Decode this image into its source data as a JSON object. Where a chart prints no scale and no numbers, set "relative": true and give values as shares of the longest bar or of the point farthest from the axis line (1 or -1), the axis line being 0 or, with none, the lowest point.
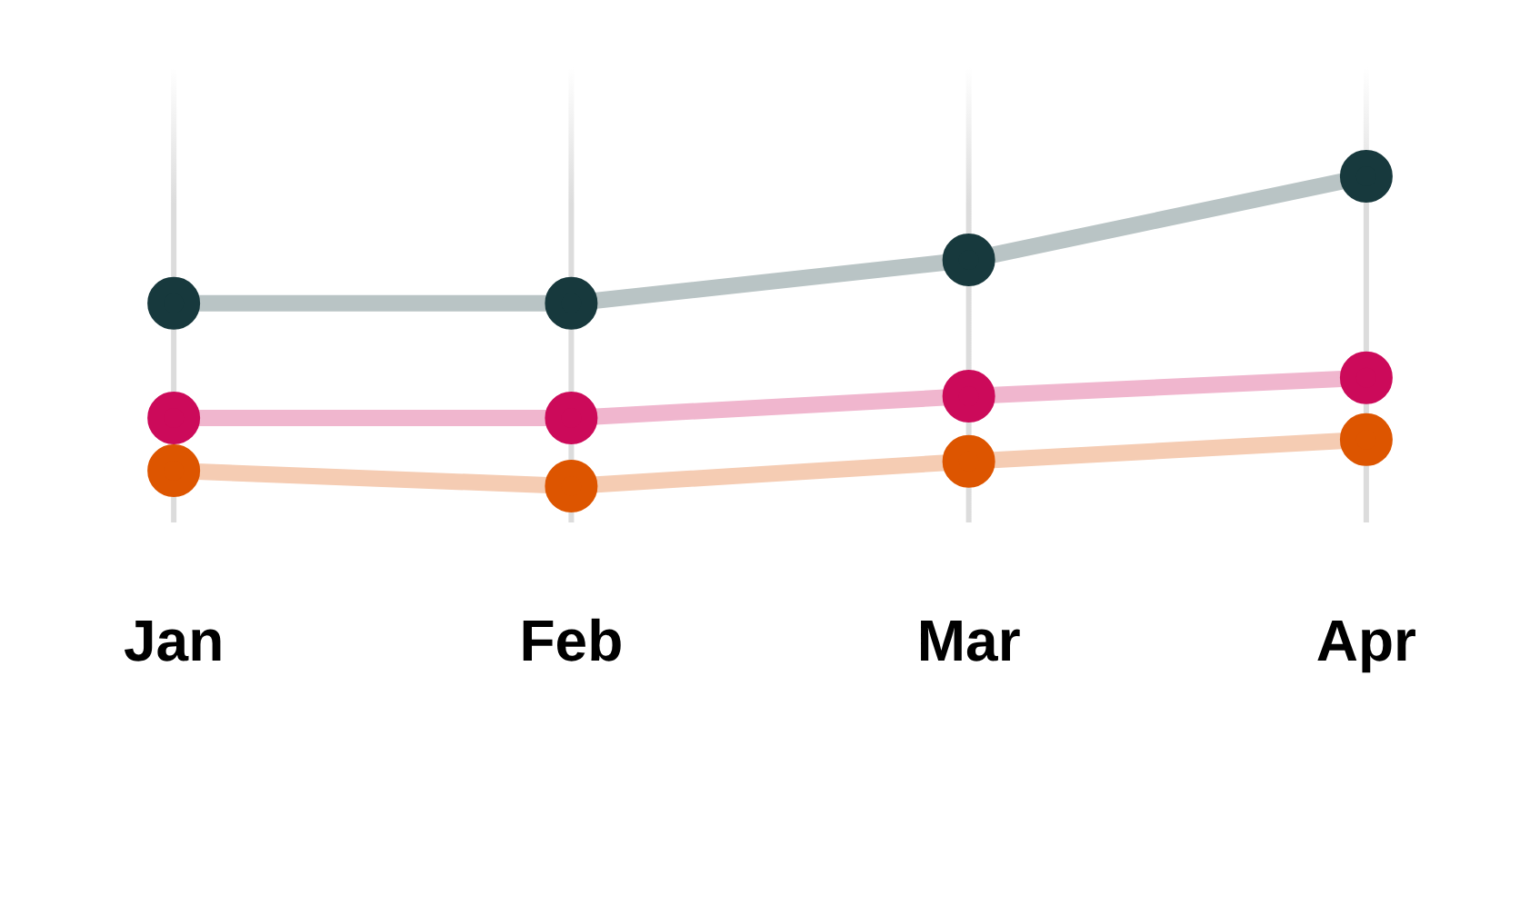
{
  "chart_data": {
    "type": "line",
    "relative": true,
    "categories": [
      "Jan",
      "Feb",
      "Mar",
      "Apr"
    ],
    "grid": "x",
    "legend": false,
    "marker": "circle",
    "line_style": "solid",
    "series": [
      {
        "color": "#17393d",
        "values": [
          0.59,
          0.59,
          0.73,
          1
        ]
      },
      {
        "color": "#cc0a5a",
        "values": [
          0.22,
          0.22,
          0.29,
          0.35
        ]
      },
      {
        "color": "#dd5500",
        "values": [
          0.05,
          0,
          0.08,
          0.15
        ]
      }
    ]
  }
}
